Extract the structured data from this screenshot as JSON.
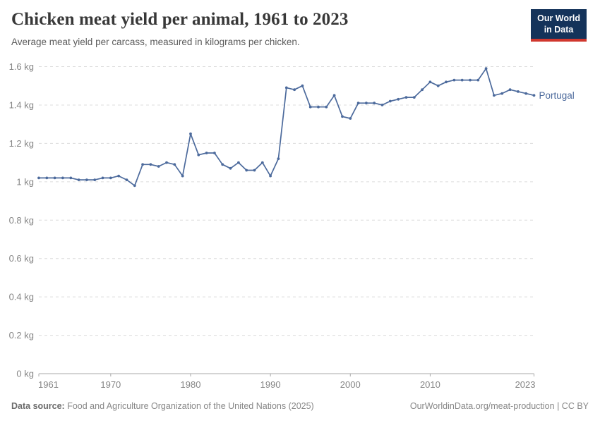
{
  "header": {
    "title": "Chicken meat yield per animal, 1961 to 2023",
    "subtitle": "Average meat yield per carcass, measured in kilograms per chicken."
  },
  "logo": {
    "line1": "Our World",
    "line2": "in Data",
    "bg_color": "#14335a",
    "accent_color": "#d0372e"
  },
  "chart_data": {
    "type": "line",
    "title": "Chicken meat yield per animal, 1961 to 2023",
    "subtitle": "Average meat yield per carcass, measured in kilograms per chicken.",
    "xlabel": "",
    "ylabel": "",
    "xlim": [
      1961,
      2023
    ],
    "ylim": [
      0,
      1.6
    ],
    "grid": "horizontal-dashed",
    "legend_position": "end-of-line-label",
    "unit": "kg",
    "x": [
      1961,
      1962,
      1963,
      1964,
      1965,
      1966,
      1967,
      1968,
      1969,
      1970,
      1971,
      1972,
      1973,
      1974,
      1975,
      1976,
      1977,
      1978,
      1979,
      1980,
      1981,
      1982,
      1983,
      1984,
      1985,
      1986,
      1987,
      1988,
      1989,
      1990,
      1991,
      1992,
      1993,
      1994,
      1995,
      1996,
      1997,
      1998,
      1999,
      2000,
      2001,
      2002,
      2003,
      2004,
      2005,
      2006,
      2007,
      2008,
      2009,
      2010,
      2011,
      2012,
      2013,
      2014,
      2015,
      2016,
      2017,
      2018,
      2019,
      2020,
      2021,
      2022,
      2023
    ],
    "series": [
      {
        "name": "Portugal",
        "color": "#4c6a9c",
        "values": [
          1.02,
          1.02,
          1.02,
          1.02,
          1.02,
          1.01,
          1.01,
          1.01,
          1.02,
          1.02,
          1.03,
          1.01,
          0.98,
          1.09,
          1.09,
          1.08,
          1.1,
          1.09,
          1.03,
          1.25,
          1.14,
          1.15,
          1.15,
          1.09,
          1.07,
          1.1,
          1.06,
          1.06,
          1.1,
          1.03,
          1.12,
          1.49,
          1.48,
          1.5,
          1.39,
          1.39,
          1.39,
          1.45,
          1.34,
          1.33,
          1.41,
          1.41,
          1.41,
          1.4,
          1.42,
          1.43,
          1.44,
          1.44,
          1.48,
          1.52,
          1.5,
          1.52,
          1.53,
          1.53,
          1.53,
          1.53,
          1.59,
          1.45,
          1.46,
          1.48,
          1.47,
          1.46,
          1.45
        ]
      }
    ],
    "yticks": [
      {
        "v": 0,
        "label": "0 kg"
      },
      {
        "v": 0.2,
        "label": "0.2 kg"
      },
      {
        "v": 0.4,
        "label": "0.4 kg"
      },
      {
        "v": 0.6,
        "label": "0.6 kg"
      },
      {
        "v": 0.8,
        "label": "0.8 kg"
      },
      {
        "v": 1,
        "label": "1 kg"
      },
      {
        "v": 1.2,
        "label": "1.2 kg"
      },
      {
        "v": 1.4,
        "label": "1.4 kg"
      },
      {
        "v": 1.6,
        "label": "1.6 kg"
      }
    ],
    "xticks": [
      {
        "v": 1961,
        "label": "1961"
      },
      {
        "v": 1970,
        "label": "1970"
      },
      {
        "v": 1980,
        "label": "1980"
      },
      {
        "v": 1990,
        "label": "1990"
      },
      {
        "v": 2000,
        "label": "2000"
      },
      {
        "v": 2010,
        "label": "2010"
      },
      {
        "v": 2023,
        "label": "2023"
      }
    ]
  },
  "footer": {
    "source_label": "Data source:",
    "source_text": " Food and Agriculture Organization of the United Nations (2025)",
    "link": "OurWorldinData.org/meat-production",
    "license": " | CC BY"
  }
}
